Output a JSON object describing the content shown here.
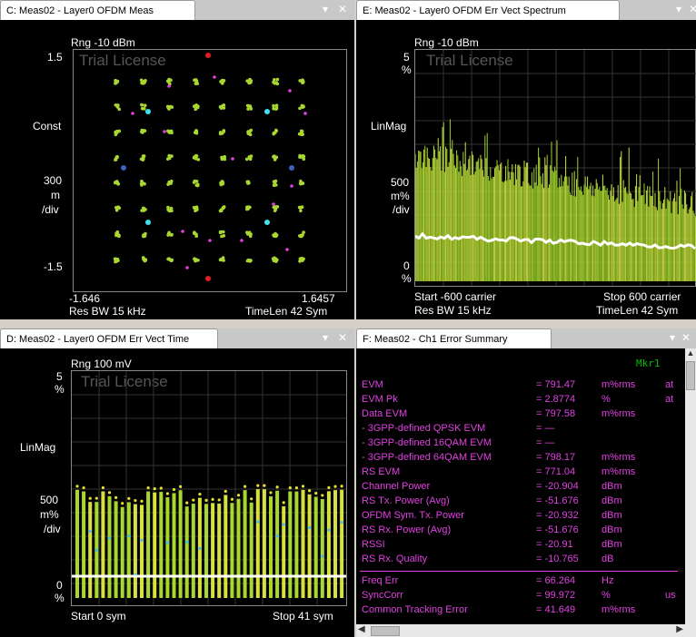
{
  "panes": {
    "c": {
      "title": "C: Meas02 - Layer0 OFDM Meas",
      "range": "Rng -10 dBm",
      "trial": "Trial License",
      "y_top": "1.5",
      "y_bottom": "-1.5",
      "y_mode": "Const",
      "y_scale_1": "300",
      "y_scale_2": "m",
      "y_scale_3": "/div",
      "x_left": "-1.646",
      "x_right": "1.6457",
      "footer_left": "Res BW 15 kHz",
      "footer_right": "TimeLen 42  Sym"
    },
    "e": {
      "title": "E: Meas02 - Layer0 OFDM Err Vect Spectrum",
      "range": "Rng -10 dBm",
      "trial": "Trial License",
      "y_top_1": "5",
      "y_top_2": "%",
      "y_mode": "LinMag",
      "y_scale_1": "500",
      "y_scale_2": "m%",
      "y_scale_3": "/div",
      "y_bottom_1": "0",
      "y_bottom_2": "%",
      "x_left": "Start -600  carrier",
      "x_right": "Stop 600  carrier",
      "footer_left": "Res BW 15 kHz",
      "footer_right": "TimeLen 42  Sym"
    },
    "d": {
      "title": "D: Meas02 - Layer0 OFDM Err Vect Time",
      "range": "Rng 100 mV",
      "trial": "Trial License",
      "y_top_1": "5",
      "y_top_2": "%",
      "y_mode": "LinMag",
      "y_scale_1": "500",
      "y_scale_2": "m%",
      "y_scale_3": "/div",
      "y_bottom_1": "0",
      "y_bottom_2": "%",
      "x_left": "Start 0  sym",
      "x_right": "Stop 41  sym"
    },
    "f": {
      "title": "F: Meas02 - Ch1 Error Summary",
      "marker": "Mkr1"
    }
  },
  "summary": [
    {
      "label": "EVM",
      "value": "= 791.47",
      "unit": "m%rms",
      "extra": "at"
    },
    {
      "label": "EVM Pk",
      "value": "= 2.8774",
      "unit": "%",
      "extra": "at"
    },
    {
      "label": "Data EVM",
      "value": "= 797.58",
      "unit": "m%rms",
      "extra": ""
    },
    {
      "label": "- 3GPP-defined QPSK EVM",
      "value": "= —",
      "unit": "",
      "extra": ""
    },
    {
      "label": "- 3GPP-defined 16QAM EVM",
      "value": "= —",
      "unit": "",
      "extra": ""
    },
    {
      "label": "- 3GPP-defined 64QAM EVM",
      "value": "= 798.17",
      "unit": "m%rms",
      "extra": ""
    },
    {
      "label": "RS EVM",
      "value": "= 771.04",
      "unit": "m%rms",
      "extra": ""
    },
    {
      "label": "Channel Power",
      "value": "= -20.904",
      "unit": "dBm",
      "extra": ""
    },
    {
      "label": "RS Tx. Power (Avg)",
      "value": "= -51.676",
      "unit": "dBm",
      "extra": ""
    },
    {
      "label": "OFDM Sym. Tx. Power",
      "value": "= -20.932",
      "unit": "dBm",
      "extra": ""
    },
    {
      "label": "RS Rx. Power (Avg)",
      "value": "= -51.676",
      "unit": "dBm",
      "extra": ""
    },
    {
      "label": "RSSI",
      "value": "= -20.91",
      "unit": "dBm",
      "extra": ""
    },
    {
      "label": "RS Rx. Quality",
      "value": "= -10.765",
      "unit": "dB",
      "extra": ""
    }
  ],
  "summary2": [
    {
      "label": "Freq Err",
      "value": "= 66.264",
      "unit": "Hz",
      "extra": ""
    },
    {
      "label": "SyncCorr",
      "value": "= 99.972",
      "unit": "%",
      "extra": "us"
    },
    {
      "label": "Common Tracking Error",
      "value": "= 41.649",
      "unit": "m%rms",
      "extra": ""
    }
  ],
  "controls": {
    "pin": "▾",
    "close": "✕"
  },
  "colors": {
    "plot_border": "#888888",
    "trace_green": "#a8d830",
    "trace_yellow": "#e8e030",
    "trace_white": "#ffffff",
    "summary_text": "#e040e0",
    "marker": "#00c000"
  }
}
